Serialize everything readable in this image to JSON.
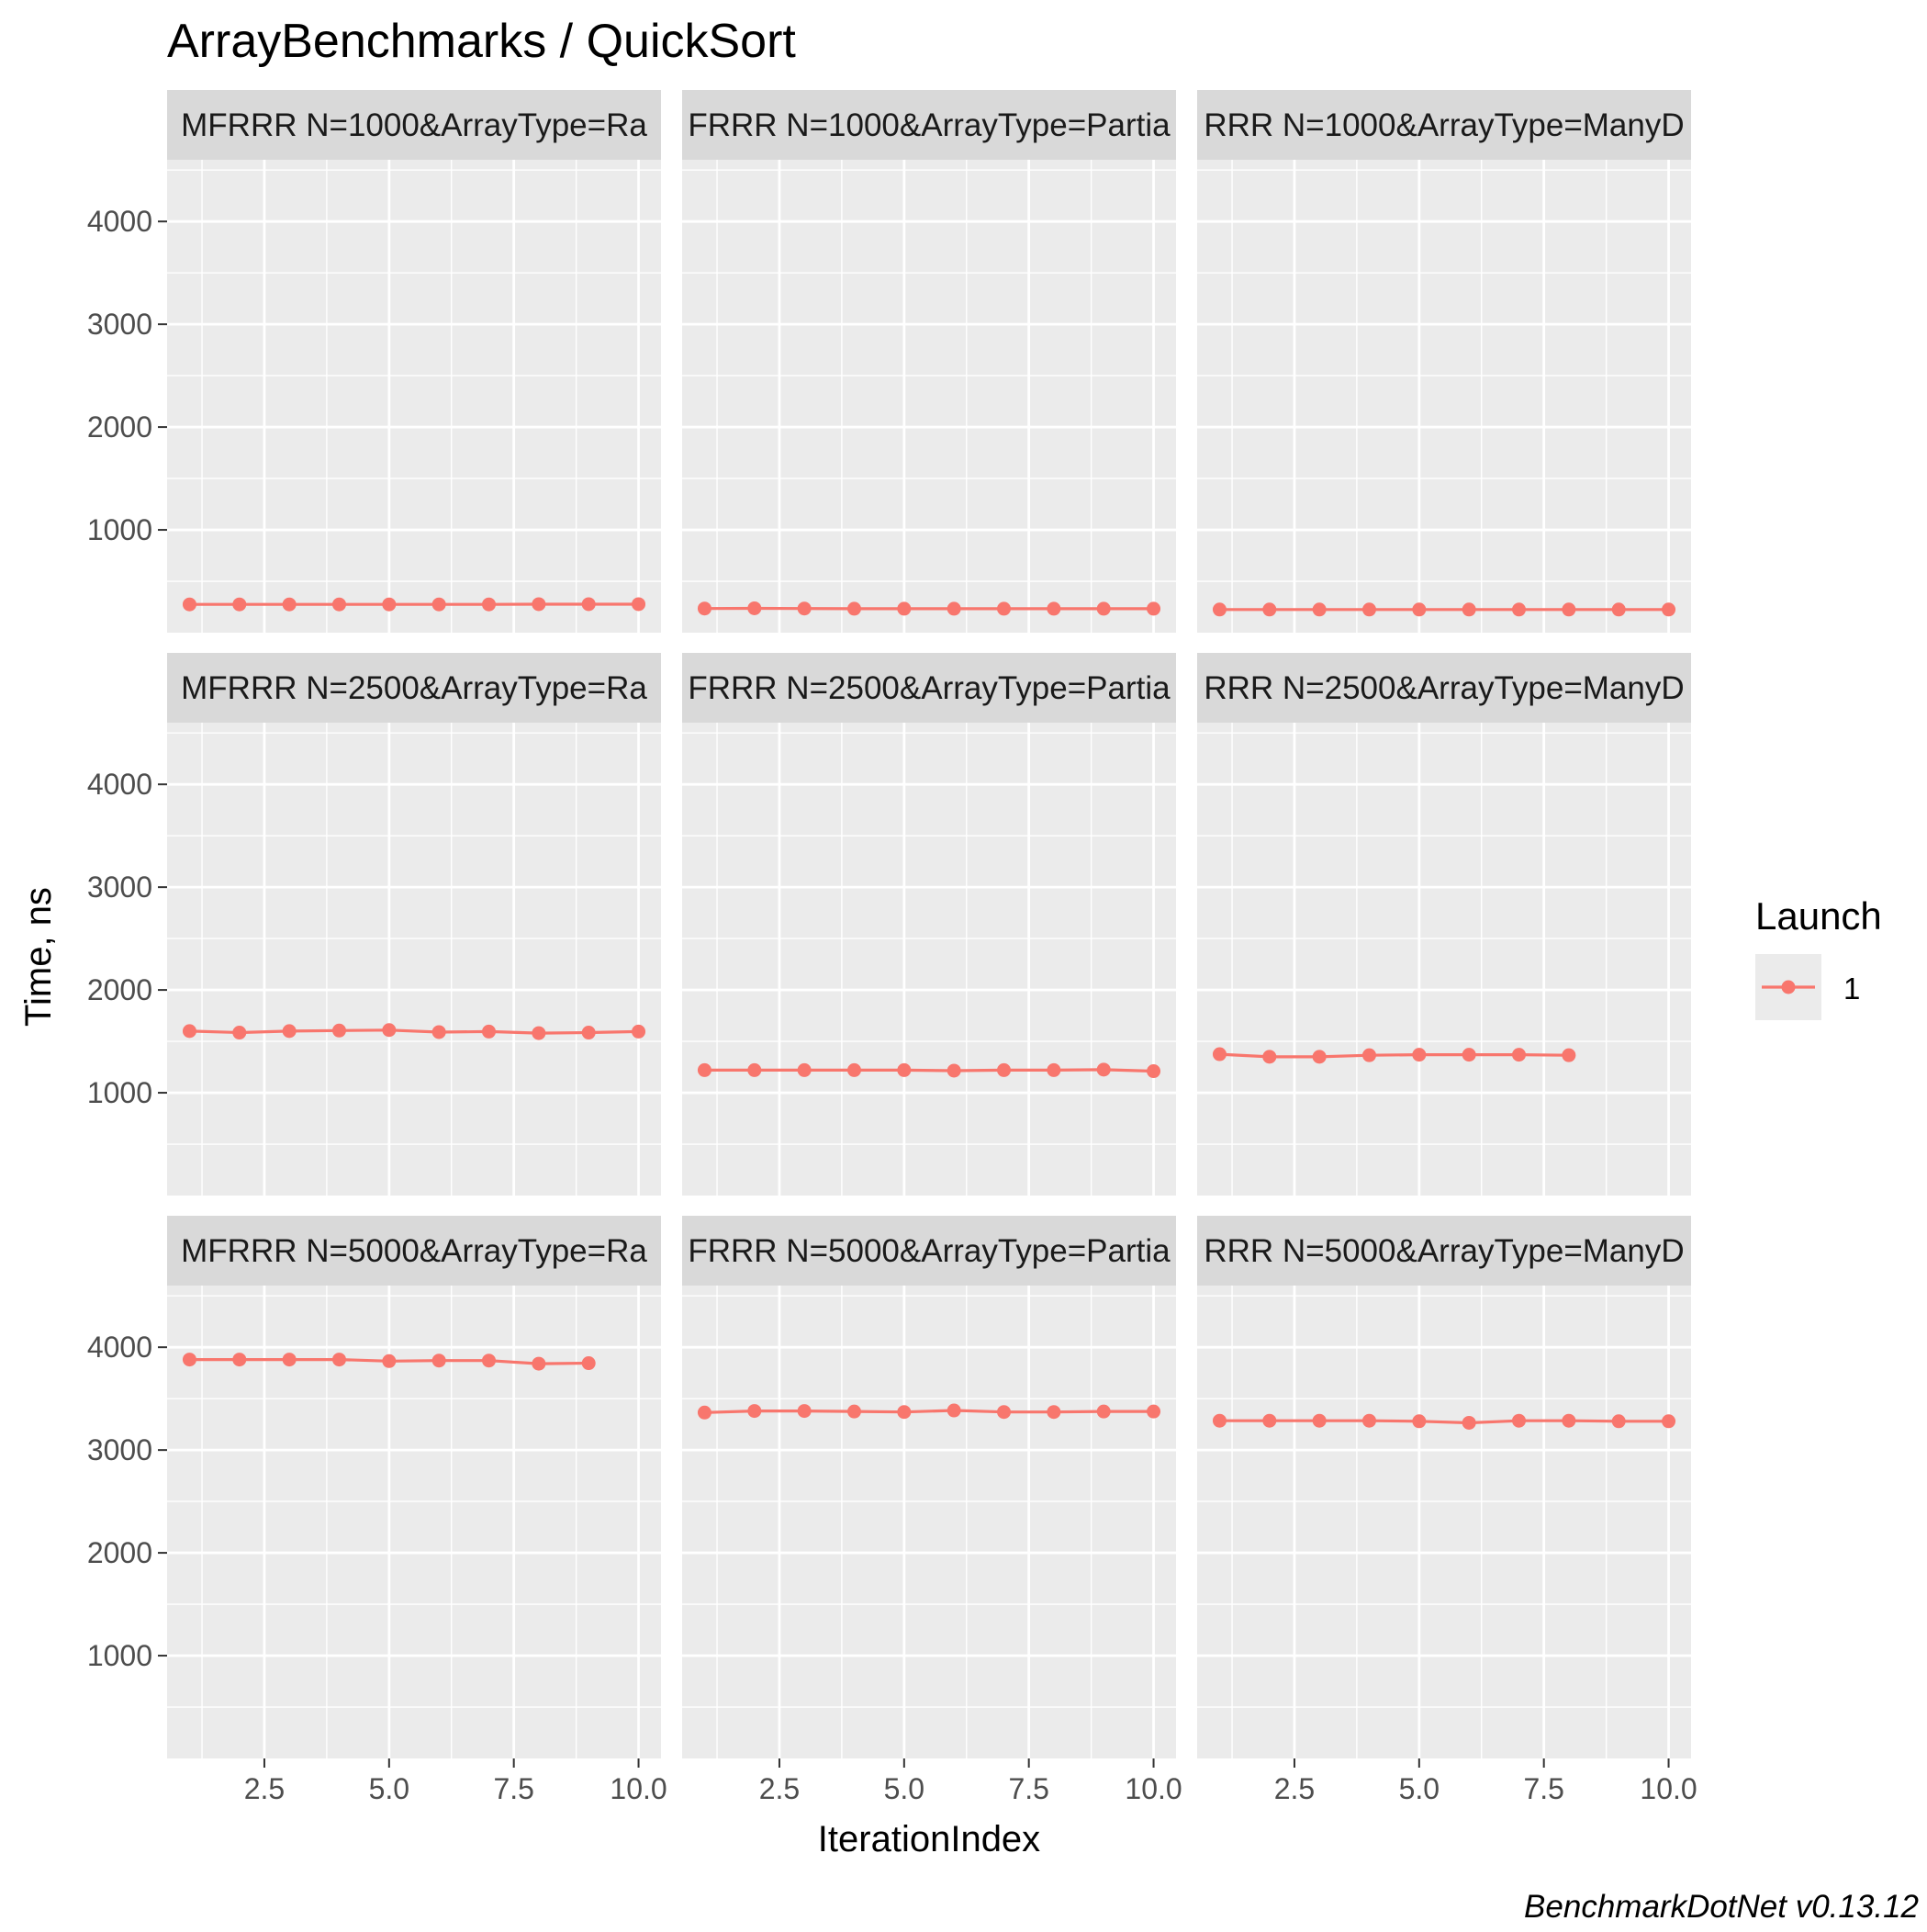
{
  "chart_data": {
    "type": "line",
    "title": "ArrayBenchmarks / QuickSort",
    "xlabel": "IterationIndex",
    "ylabel": "Time, ns",
    "caption": "BenchmarkDotNet v0.13.12",
    "legend": {
      "title": "Launch",
      "entries": [
        "1"
      ],
      "position": "right"
    },
    "series_color": "#F8766D",
    "panel_background": "#EBEBEB",
    "strip_background": "#D9D9D9",
    "grid": true,
    "xlim": [
      0.55,
      10.45
    ],
    "ylim": [
      0,
      4600
    ],
    "x_ticks": [
      2.5,
      5.0,
      7.5,
      10.0
    ],
    "x_tick_labels": [
      "2.5",
      "5.0",
      "7.5",
      "10.0"
    ],
    "y_ticks": [
      1000,
      2000,
      3000,
      4000
    ],
    "y_tick_labels": [
      "1000",
      "2000",
      "3000",
      "4000"
    ],
    "panels": [
      {
        "strip": "MFRRR N=1000&ArrayType=Ra",
        "x": [
          1,
          2,
          3,
          4,
          5,
          6,
          7,
          8,
          9,
          10
        ],
        "y": [
          275,
          275,
          275,
          275,
          275,
          275,
          275,
          277,
          277,
          277
        ]
      },
      {
        "strip": "FRRR N=1000&ArrayType=Partia",
        "x": [
          1,
          2,
          3,
          4,
          5,
          6,
          7,
          8,
          9,
          10
        ],
        "y": [
          235,
          237,
          235,
          233,
          233,
          233,
          233,
          233,
          233,
          233
        ]
      },
      {
        "strip": "RRR N=1000&ArrayType=ManyD",
        "x": [
          1,
          2,
          3,
          4,
          5,
          6,
          7,
          8,
          9,
          10
        ],
        "y": [
          225,
          225,
          225,
          225,
          225,
          225,
          225,
          225,
          225,
          225
        ]
      },
      {
        "strip": "MFRRR N=2500&ArrayType=Ra",
        "x": [
          1,
          2,
          3,
          4,
          5,
          6,
          7,
          8,
          9,
          10
        ],
        "y": [
          1600,
          1585,
          1600,
          1605,
          1610,
          1590,
          1595,
          1580,
          1585,
          1595
        ]
      },
      {
        "strip": "FRRR N=2500&ArrayType=Partia",
        "x": [
          1,
          2,
          3,
          4,
          5,
          6,
          7,
          8,
          9,
          10
        ],
        "y": [
          1220,
          1220,
          1220,
          1220,
          1220,
          1215,
          1220,
          1220,
          1225,
          1210
        ]
      },
      {
        "strip": "RRR N=2500&ArrayType=ManyD",
        "x": [
          1,
          2,
          3,
          4,
          5,
          6,
          7,
          8
        ],
        "y": [
          1375,
          1350,
          1350,
          1365,
          1370,
          1370,
          1370,
          1365
        ]
      },
      {
        "strip": "MFRRR N=5000&ArrayType=Ra",
        "x": [
          1,
          2,
          3,
          4,
          5,
          6,
          7,
          8,
          9
        ],
        "y": [
          3880,
          3880,
          3880,
          3880,
          3865,
          3870,
          3870,
          3840,
          3845
        ]
      },
      {
        "strip": "FRRR N=5000&ArrayType=Partia",
        "x": [
          1,
          2,
          3,
          4,
          5,
          6,
          7,
          8,
          9,
          10
        ],
        "y": [
          3365,
          3380,
          3380,
          3375,
          3370,
          3385,
          3370,
          3370,
          3375,
          3375
        ]
      },
      {
        "strip": "RRR N=5000&ArrayType=ManyD",
        "x": [
          1,
          2,
          3,
          4,
          5,
          6,
          7,
          8,
          9,
          10
        ],
        "y": [
          3285,
          3285,
          3285,
          3285,
          3280,
          3265,
          3285,
          3285,
          3280,
          3280
        ]
      }
    ]
  }
}
